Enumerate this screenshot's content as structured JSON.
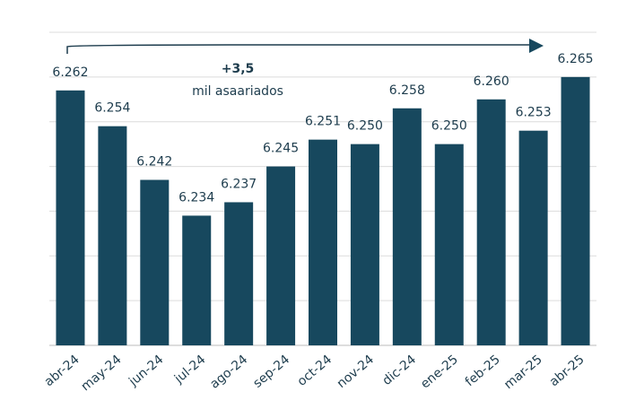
{
  "chart_data": {
    "type": "bar",
    "categories": [
      "abr-24",
      "may-24",
      "jun-24",
      "jul-24",
      "ago-24",
      "sep-24",
      "oct-24",
      "nov-24",
      "dic-24",
      "ene-25",
      "feb-25",
      "mar-25",
      "abr-25"
    ],
    "values": [
      6262,
      6254,
      6242,
      6234,
      6237,
      6245,
      6251,
      6250,
      6258,
      6250,
      6260,
      6253,
      6265
    ],
    "value_labels": [
      "6.262",
      "6.254",
      "6.242",
      "6.234",
      "6.237",
      "6.245",
      "6.251",
      "6.250",
      "6.258",
      "6.250",
      "6.260",
      "6.253",
      "6.265"
    ],
    "color": "#17485e",
    "ylim": [
      6205,
      6275
    ],
    "yticks": [
      6205,
      6215,
      6225,
      6235,
      6245,
      6255,
      6265,
      6275
    ],
    "grid": true,
    "annotation": {
      "value": "+3,5",
      "text": "mil asaariados"
    }
  }
}
